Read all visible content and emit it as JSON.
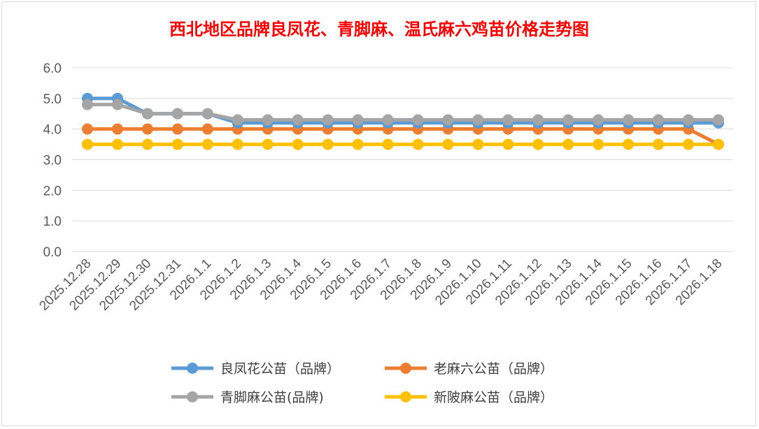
{
  "chart_data": {
    "type": "line",
    "title": "西北地区品牌良凤花、青脚麻、温氏麻六鸡苗价格走势图",
    "xlabel": "",
    "ylabel": "",
    "ylim": [
      0,
      6
    ],
    "yticks": [
      "0.0",
      "1.0",
      "2.0",
      "3.0",
      "4.0",
      "5.0",
      "6.0"
    ],
    "grid": true,
    "legend_position": "bottom",
    "categories": [
      "2025.12.28",
      "2025.12.29",
      "2025.12.30",
      "2025.12.31",
      "2026.1.1",
      "2026.1.2",
      "2026.1.3",
      "2026.1.4",
      "2026.1.5",
      "2026.1.6",
      "2026.1.7",
      "2026.1.8",
      "2026.1.9",
      "2026.1.10",
      "2026.1.11",
      "2026.1.12",
      "2026.1.13",
      "2026.1.14",
      "2026.1.15",
      "2026.1.16",
      "2026.1.17",
      "2026.1.18"
    ],
    "series": [
      {
        "name": "良凤花公苗（品牌）",
        "color": "#5b9bd5",
        "values": [
          5.0,
          5.0,
          4.5,
          4.5,
          4.5,
          4.2,
          4.2,
          4.2,
          4.2,
          4.2,
          4.2,
          4.2,
          4.2,
          4.2,
          4.2,
          4.2,
          4.2,
          4.2,
          4.2,
          4.2,
          4.2,
          4.2
        ]
      },
      {
        "name": "老麻六公苗（品牌）",
        "color": "#ed7d31",
        "values": [
          4.0,
          4.0,
          4.0,
          4.0,
          4.0,
          4.0,
          4.0,
          4.0,
          4.0,
          4.0,
          4.0,
          4.0,
          4.0,
          4.0,
          4.0,
          4.0,
          4.0,
          4.0,
          4.0,
          4.0,
          4.0,
          3.5
        ]
      },
      {
        "name": "青脚麻公苗(品牌)",
        "color": "#a5a5a5",
        "values": [
          4.8,
          4.8,
          4.5,
          4.5,
          4.5,
          4.3,
          4.3,
          4.3,
          4.3,
          4.3,
          4.3,
          4.3,
          4.3,
          4.3,
          4.3,
          4.3,
          4.3,
          4.3,
          4.3,
          4.3,
          4.3,
          4.3
        ]
      },
      {
        "name": "新陂麻公苗（品牌）",
        "color": "#ffc000",
        "values": [
          3.5,
          3.5,
          3.5,
          3.5,
          3.5,
          3.5,
          3.5,
          3.5,
          3.5,
          3.5,
          3.5,
          3.5,
          3.5,
          3.5,
          3.5,
          3.5,
          3.5,
          3.5,
          3.5,
          3.5,
          3.5,
          3.5
        ]
      }
    ]
  }
}
